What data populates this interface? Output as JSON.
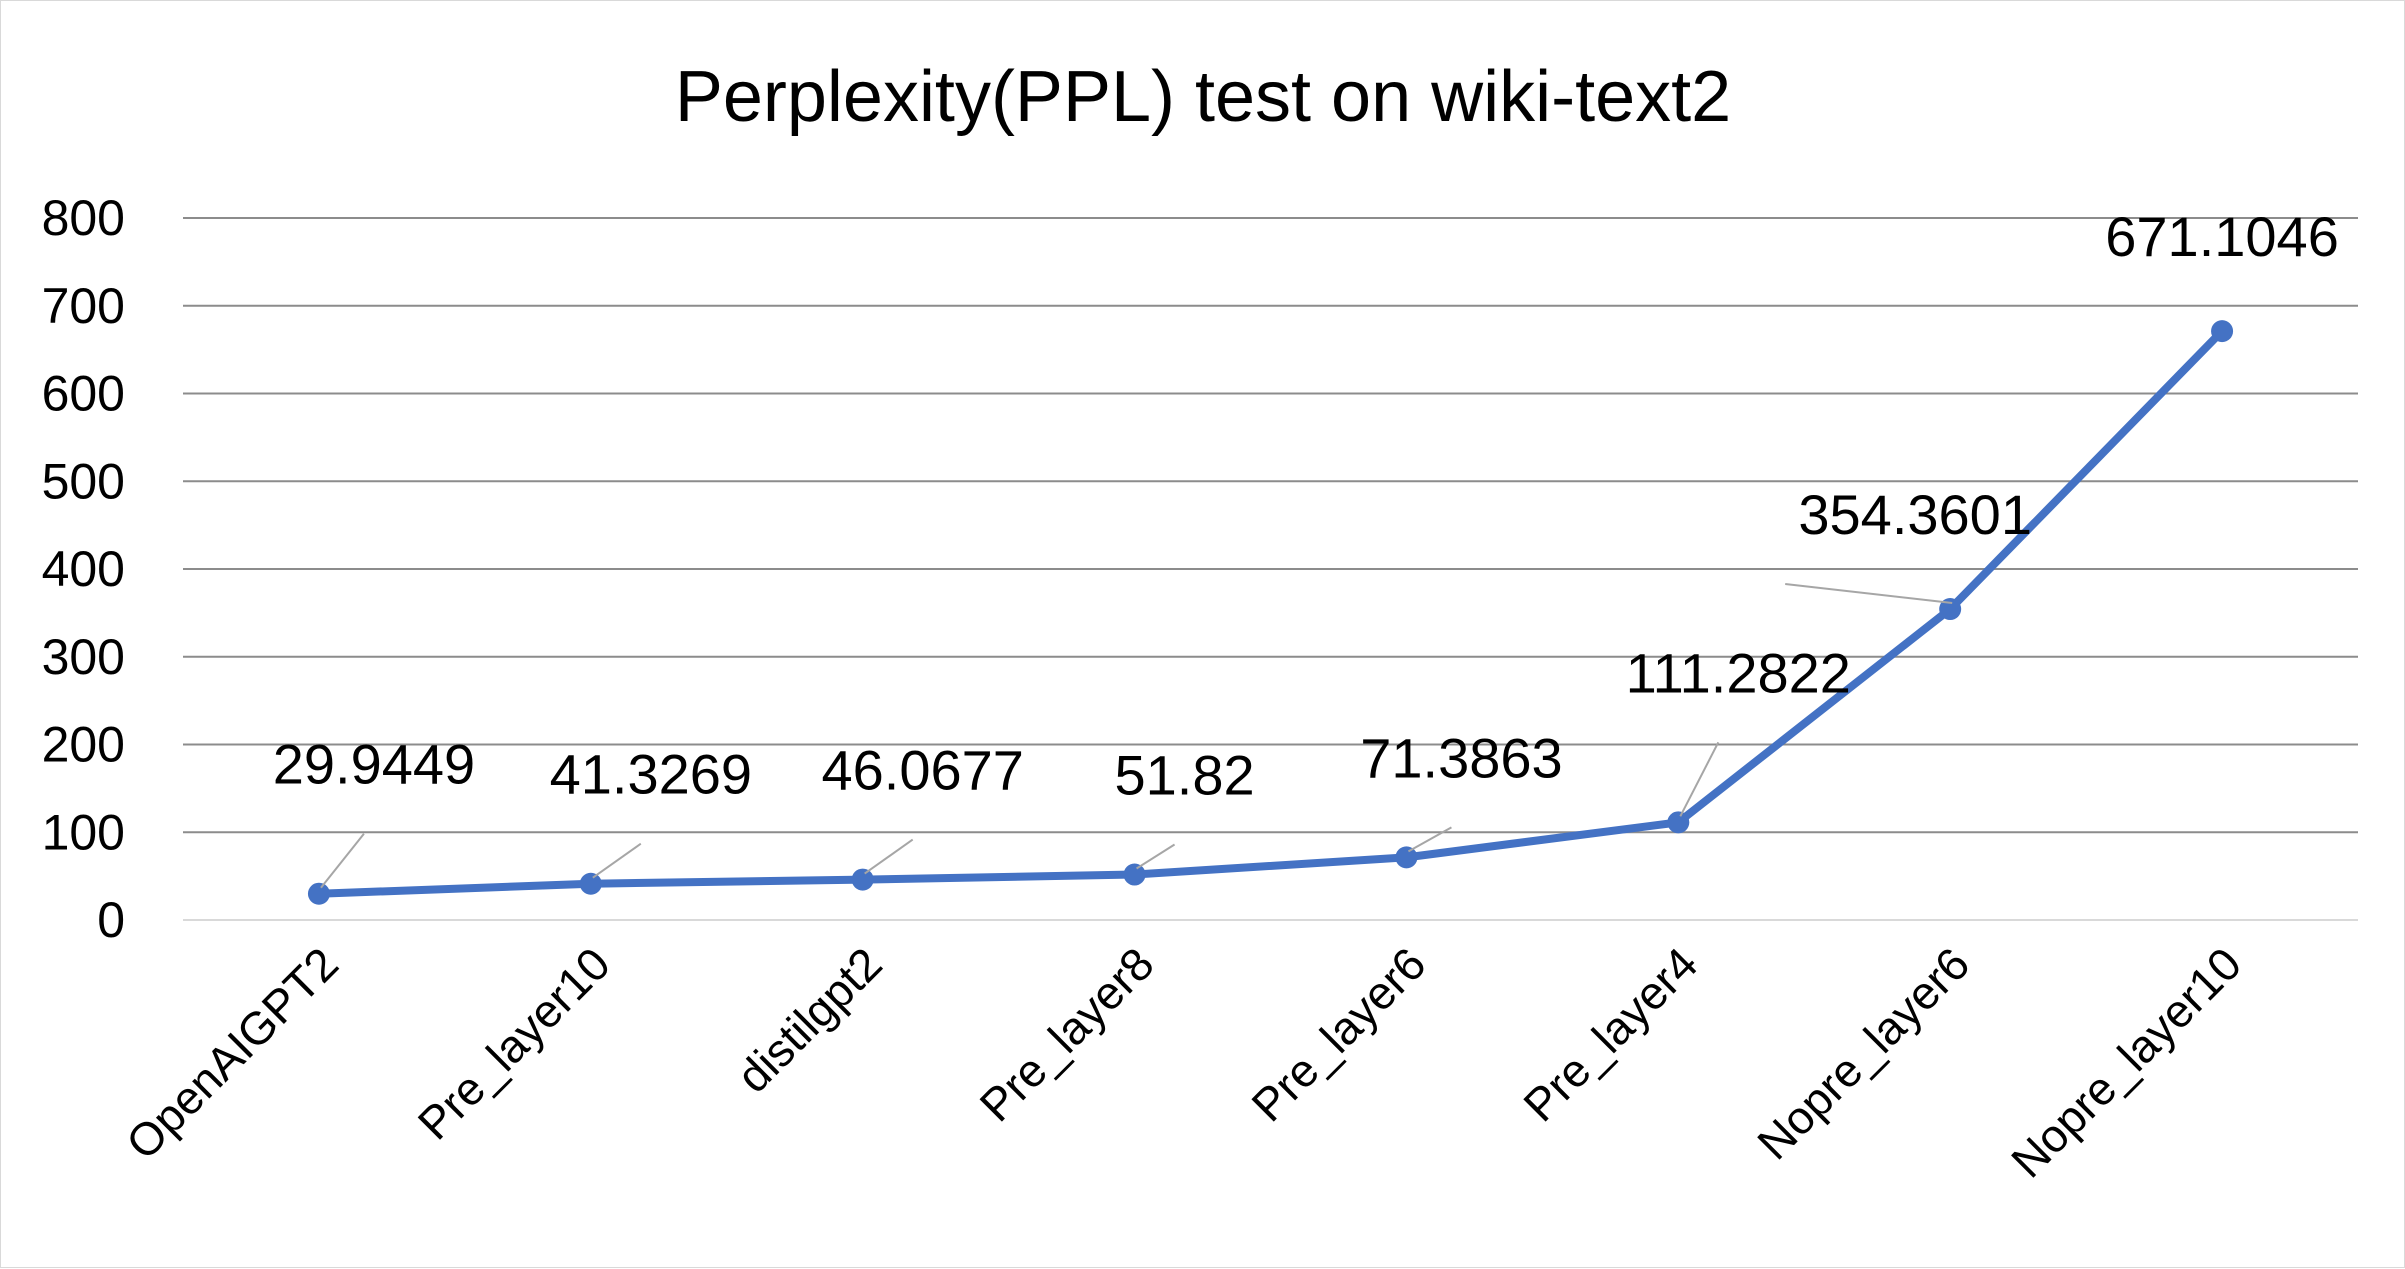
{
  "chart_data": {
    "type": "line",
    "title": "Perplexity(PPL) test on wiki-text2",
    "xlabel": "",
    "ylabel": "",
    "categories": [
      "OpenAIGPT2",
      "Pre_layer10",
      "distilgpt2",
      "Pre_layer8",
      "Pre_layer6",
      "Pre_layer4",
      "Nopre_layer6",
      "Nopre_layer10"
    ],
    "series": [
      {
        "values": [
          29.9449,
          41.3269,
          46.0677,
          51.82,
          71.3863,
          111.2822,
          354.3601,
          671.1046
        ],
        "labels": [
          "29.9449",
          "41.3269",
          "46.0677",
          "51.82",
          "71.3863",
          "111.2822",
          "354.3601",
          "671.1046"
        ],
        "color": "#4472c4"
      }
    ],
    "ylim": [
      0,
      800
    ],
    "yticks": [
      0,
      100,
      200,
      300,
      400,
      500,
      600,
      700,
      800
    ],
    "grid": true,
    "legend": "none"
  }
}
